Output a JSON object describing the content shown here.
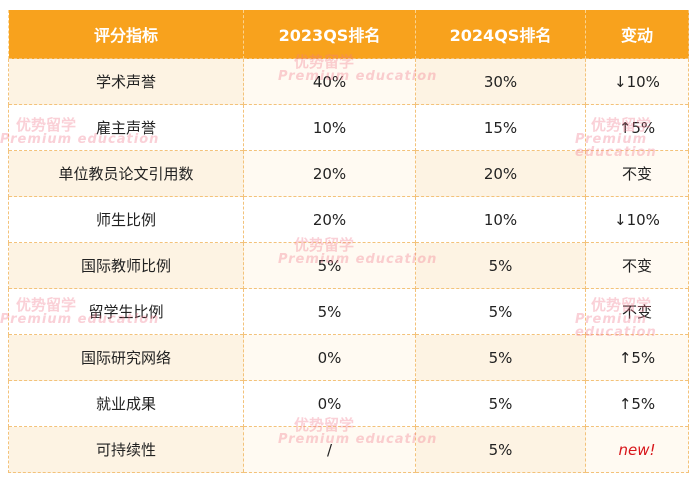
{
  "table": {
    "header": [
      "评分指标",
      "2023QS排名",
      "2024QS排名",
      "变动"
    ],
    "rows": [
      [
        "学术声誉",
        "40%",
        "30%",
        "↓10%"
      ],
      [
        "雇主声誉",
        "10%",
        "15%",
        "↑5%"
      ],
      [
        "单位教员论文引用数",
        "20%",
        "20%",
        "不变"
      ],
      [
        "师生比例",
        "20%",
        "10%",
        "↓10%"
      ],
      [
        "国际教师比例",
        "5%",
        "5%",
        "不变"
      ],
      [
        "留学生比例",
        "5%",
        "5%",
        "不变"
      ],
      [
        "国际研究网络",
        "0%",
        "5%",
        "↑5%"
      ],
      [
        "就业成果",
        "0%",
        "5%",
        "↑5%"
      ],
      [
        "可持续性",
        "/",
        "5%",
        "new!"
      ]
    ]
  },
  "watermark": {
    "logo": "优势留学",
    "tagline": "Premium education"
  }
}
